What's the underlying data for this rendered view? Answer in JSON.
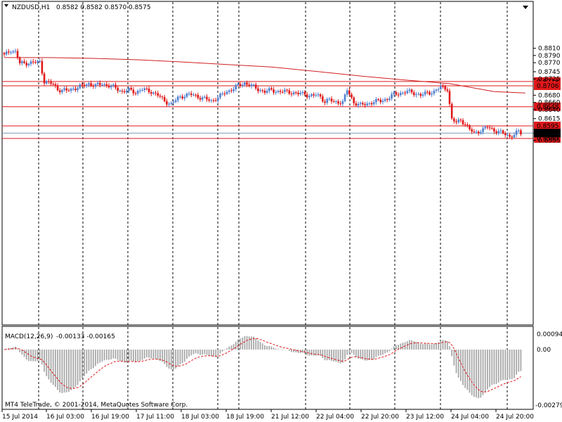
{
  "header": {
    "symbol_title": "NZDUSD,H1",
    "ohlc": "0.8582 0.8582 0.8570 0.8575"
  },
  "indicator": {
    "label": "MACD(12,26,9)",
    "values": "-0.00133 -0.00165",
    "scale_labels": [
      "0.00094",
      "0.00",
      "-0.00279"
    ]
  },
  "copyright": "MT4 TeleTrade, © 2001-2014, MetaQuotes Software Corp.",
  "colors": {
    "bull": "#4f7fd0",
    "bear": "#e0181a",
    "hline": "#e0181a",
    "ma": "#d02020",
    "macd_hist": "#a8a8a8",
    "signal": "#e0181a",
    "grid": "#000000",
    "current_line": "#7a9ab0"
  },
  "chart_data": {
    "type": "candlestick",
    "symbol": "NZDUSD",
    "timeframe": "H1",
    "price_axis_labels": [
      "0.8810",
      "0.8790",
      "0.8770",
      "0.8745",
      "0.8725",
      "0.8680",
      "0.8660",
      "0.8640",
      "0.8615",
      "0.8575",
      "0.8555"
    ],
    "horizontal_levels": [
      {
        "price": "0.8718",
        "value": 0.8718
      },
      {
        "price": "0.8706",
        "value": 0.8706
      },
      {
        "price": "0.8648",
        "value": 0.8648
      },
      {
        "price": "0.8595",
        "value": 0.8595
      },
      {
        "price": "0.8560",
        "value": 0.856
      }
    ],
    "current_price": {
      "label": "0.8575",
      "value": 0.8575
    },
    "time_labels": [
      "15 Jul 2014",
      "16 Jul 03:00",
      "16 Jul 19:00",
      "17 Jul 11:00",
      "18 Jul 03:00",
      "18 Jul 19:00",
      "21 Jul 12:00",
      "22 Jul 04:00",
      "22 Jul 20:00",
      "23 Jul 12:00",
      "24 Jul 04:00",
      "24 Jul 20:00"
    ],
    "close_path": [
      [
        0,
        0.879
      ],
      [
        3,
        0.8805
      ],
      [
        5,
        0.88
      ],
      [
        7,
        0.8768
      ],
      [
        12,
        0.877
      ],
      [
        16,
        0.8772
      ],
      [
        18,
        0.8718
      ],
      [
        22,
        0.871
      ],
      [
        24,
        0.8696
      ],
      [
        28,
        0.8692
      ],
      [
        32,
        0.87
      ],
      [
        35,
        0.8705
      ],
      [
        38,
        0.8712
      ],
      [
        41,
        0.8706
      ],
      [
        44,
        0.8712
      ],
      [
        47,
        0.8706
      ],
      [
        50,
        0.87
      ],
      [
        53,
        0.869
      ],
      [
        56,
        0.8694
      ],
      [
        59,
        0.8688
      ],
      [
        62,
        0.8696
      ],
      [
        66,
        0.869
      ],
      [
        69,
        0.868
      ],
      [
        72,
        0.8664
      ],
      [
        75,
        0.8655
      ],
      [
        78,
        0.8672
      ],
      [
        81,
        0.868
      ],
      [
        84,
        0.8682
      ],
      [
        87,
        0.8676
      ],
      [
        90,
        0.867
      ],
      [
        93,
        0.8664
      ],
      [
        96,
        0.8674
      ],
      [
        99,
        0.8686
      ],
      [
        102,
        0.8696
      ],
      [
        105,
        0.8706
      ],
      [
        108,
        0.8714
      ],
      [
        111,
        0.8706
      ],
      [
        114,
        0.8696
      ],
      [
        117,
        0.869
      ],
      [
        120,
        0.8694
      ],
      [
        123,
        0.869
      ],
      [
        126,
        0.869
      ],
      [
        129,
        0.8688
      ],
      [
        132,
        0.8684
      ],
      [
        135,
        0.8684
      ],
      [
        137,
        0.8678
      ],
      [
        140,
        0.868
      ],
      [
        142,
        0.8676
      ],
      [
        144,
        0.8662
      ],
      [
        146,
        0.8668
      ],
      [
        148,
        0.866
      ],
      [
        150,
        0.8662
      ],
      [
        152,
        0.866
      ],
      [
        154,
        0.8694
      ],
      [
        157,
        0.866
      ],
      [
        160,
        0.8652
      ],
      [
        163,
        0.8656
      ],
      [
        166,
        0.8662
      ],
      [
        169,
        0.8664
      ],
      [
        172,
        0.867
      ],
      [
        175,
        0.8682
      ],
      [
        178,
        0.8686
      ],
      [
        181,
        0.869
      ],
      [
        184,
        0.8686
      ],
      [
        187,
        0.868
      ],
      [
        190,
        0.8686
      ],
      [
        193,
        0.869
      ],
      [
        196,
        0.8702
      ],
      [
        199,
        0.8698
      ],
      [
        201,
        0.8612
      ],
      [
        203,
        0.8604
      ],
      [
        205,
        0.8612
      ],
      [
        207,
        0.86
      ],
      [
        209,
        0.8584
      ],
      [
        211,
        0.8576
      ],
      [
        213,
        0.858
      ],
      [
        215,
        0.8584
      ],
      [
        217,
        0.8592
      ],
      [
        219,
        0.8586
      ],
      [
        221,
        0.858
      ],
      [
        223,
        0.8576
      ],
      [
        225,
        0.8572
      ],
      [
        227,
        0.8566
      ],
      [
        229,
        0.857
      ],
      [
        231,
        0.858
      ],
      [
        232,
        0.8575
      ]
    ],
    "moving_average": [
      [
        0,
        0.8784
      ],
      [
        20,
        0.8784
      ],
      [
        40,
        0.8782
      ],
      [
        60,
        0.8778
      ],
      [
        80,
        0.8772
      ],
      [
        100,
        0.8765
      ],
      [
        120,
        0.8758
      ],
      [
        140,
        0.8746
      ],
      [
        160,
        0.8733
      ],
      [
        180,
        0.8722
      ],
      [
        200,
        0.8712
      ],
      [
        220,
        0.869
      ],
      [
        234,
        0.8686
      ]
    ],
    "macd": {
      "params": "12,26,9",
      "main": -0.00133,
      "signal": -0.00165,
      "range": [
        -0.00279,
        0.00094
      ]
    }
  }
}
